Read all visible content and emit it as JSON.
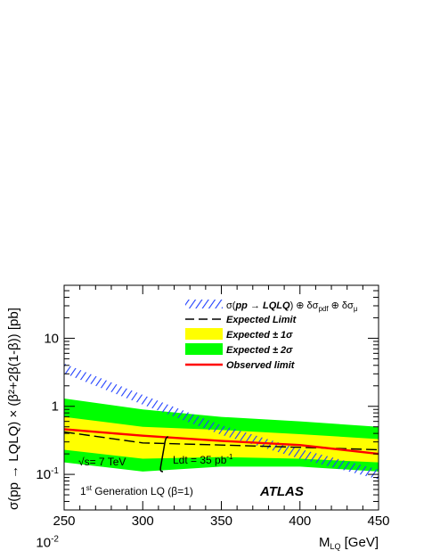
{
  "chart_data": {
    "type": "line",
    "x_axis": {
      "label": "M",
      "label_sub": "LQ",
      "label_unit": " [GeV]",
      "range": [
        250,
        450
      ],
      "ticks": [
        250,
        300,
        350,
        400,
        450
      ]
    },
    "y_axis": {
      "scale": "log",
      "range": [
        0.03,
        60
      ],
      "label": "σ(pp → LQLQ) × (β²+2β(1-β)) [pb]",
      "ticks": [
        {
          "value": 0.01,
          "base": "10",
          "exp": "-2"
        },
        {
          "value": 0.1,
          "base": "10",
          "exp": "-1"
        },
        {
          "value": 1,
          "base": "1",
          "exp": ""
        },
        {
          "value": 10,
          "base": "10",
          "exp": ""
        }
      ]
    },
    "legend": {
      "theory": {
        "pre": "σ(",
        "italic": "pp → LQLQ",
        "post": ") ⊕ δσ",
        "sub1": "pdf",
        "mid": " ⊕ δσ",
        "sub2": "μ"
      },
      "expected": "Expected Limit",
      "band1": "Expected ± 1σ",
      "band2": "Expected ± 2σ",
      "observed": "Observed limit"
    },
    "x": [
      250,
      300,
      350,
      400,
      450
    ],
    "theory": [
      3.6,
      1.25,
      0.45,
      0.2,
      0.1
    ],
    "expected": [
      0.42,
      0.29,
      0.27,
      0.25,
      0.23
    ],
    "observed": [
      0.46,
      0.37,
      0.31,
      0.27,
      0.2
    ],
    "band1_low": [
      0.23,
      0.17,
      0.18,
      0.17,
      0.15
    ],
    "band1_high": [
      0.7,
      0.5,
      0.45,
      0.39,
      0.33
    ],
    "band2_low": [
      0.15,
      0.11,
      0.13,
      0.13,
      0.11
    ],
    "band2_high": [
      1.3,
      0.9,
      0.7,
      0.6,
      0.5
    ],
    "colors": {
      "theory": "#1f3fff",
      "expected": "#000000",
      "band1": "#ffff00",
      "band2": "#00ff00",
      "observed": "#ff0000"
    }
  },
  "annotations": {
    "energy": "√s= 7 TeV",
    "lumi_pre": "Ldt = 35 pb",
    "lumi_exp": "-1",
    "generation_pre": "1",
    "generation_sup": "st",
    "generation_post": " Generation LQ (β=1)",
    "experiment": "ATLAS"
  }
}
